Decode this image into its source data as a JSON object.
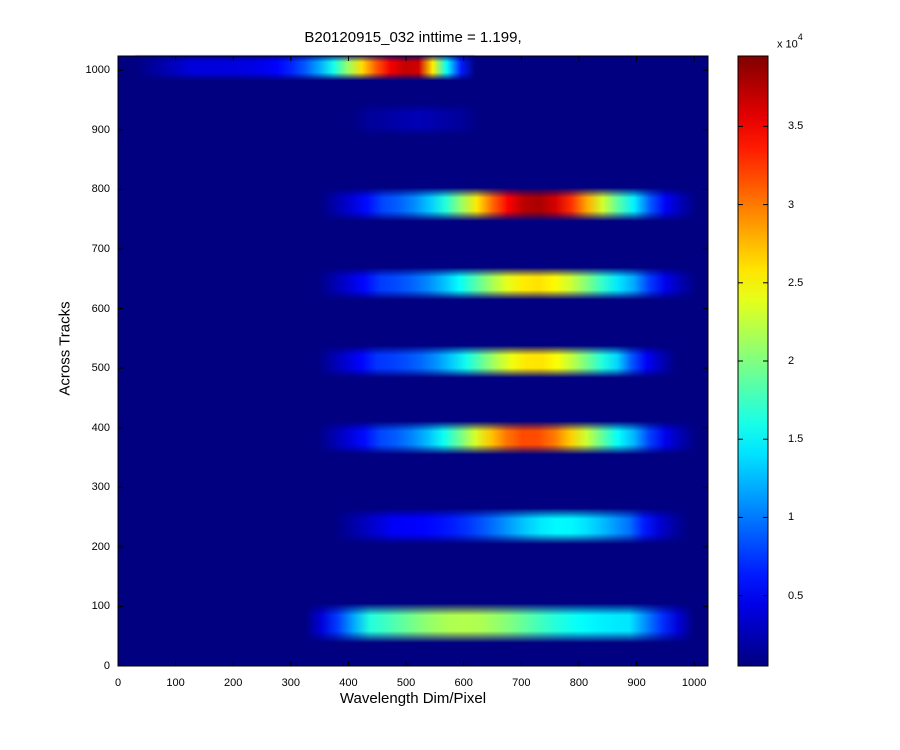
{
  "chart_data": {
    "type": "heatmap",
    "title": "B20120915_032 inttime = 1.199,",
    "xlabel": "Wavelength Dim/Pixel",
    "ylabel": "Across Tracks",
    "xlim": [
      0,
      1024
    ],
    "ylim": [
      0,
      1024
    ],
    "x_ticks": [
      "0",
      "100",
      "200",
      "300",
      "400",
      "500",
      "600",
      "700",
      "800",
      "900",
      "1000"
    ],
    "y_ticks": [
      "0",
      "100",
      "200",
      "300",
      "400",
      "500",
      "600",
      "700",
      "800",
      "900",
      "1000"
    ],
    "colorbar": {
      "colormap": "jet",
      "range": [
        500,
        39500
      ],
      "tick_labels": [
        "0.5",
        "1",
        "1.5",
        "2",
        "2.5",
        "3",
        "3.5"
      ],
      "tick_values": [
        0.5,
        1,
        1.5,
        2,
        2.5,
        3,
        3.5
      ],
      "multiplier_base": "x 10",
      "multiplier_exp": "4"
    },
    "background_value": 500,
    "bands": [
      {
        "y_center": 1005,
        "x_start": 30,
        "x_end": 620,
        "half_height": 22,
        "peak_x": 505,
        "peak_value": 37000,
        "base_value": 4000
      },
      {
        "y_center": 917,
        "x_start": 400,
        "x_end": 630,
        "half_height": 28,
        "peak_x": 520,
        "peak_value": 2500,
        "base_value": 1500
      },
      {
        "y_center": 775,
        "x_start": 350,
        "x_end": 1005,
        "half_height": 28,
        "peak_x": 725,
        "peak_value": 38000,
        "base_value": 7000
      },
      {
        "y_center": 642,
        "x_start": 345,
        "x_end": 1005,
        "half_height": 27,
        "peak_x": 725,
        "peak_value": 26000,
        "base_value": 7000
      },
      {
        "y_center": 511,
        "x_start": 345,
        "x_end": 970,
        "half_height": 27,
        "peak_x": 725,
        "peak_value": 26000,
        "base_value": 7000
      },
      {
        "y_center": 383,
        "x_start": 345,
        "x_end": 1005,
        "half_height": 28,
        "peak_x": 715,
        "peak_value": 32000,
        "base_value": 7000
      },
      {
        "y_center": 235,
        "x_start": 375,
        "x_end": 990,
        "half_height": 30,
        "peak_x": 770,
        "peak_value": 15000,
        "base_value": 5000
      },
      {
        "y_center": 72,
        "x_start": 325,
        "x_end": 1000,
        "half_height": 33,
        "peak_x": 600,
        "peak_value": 22000,
        "base_value": 14000
      }
    ]
  }
}
